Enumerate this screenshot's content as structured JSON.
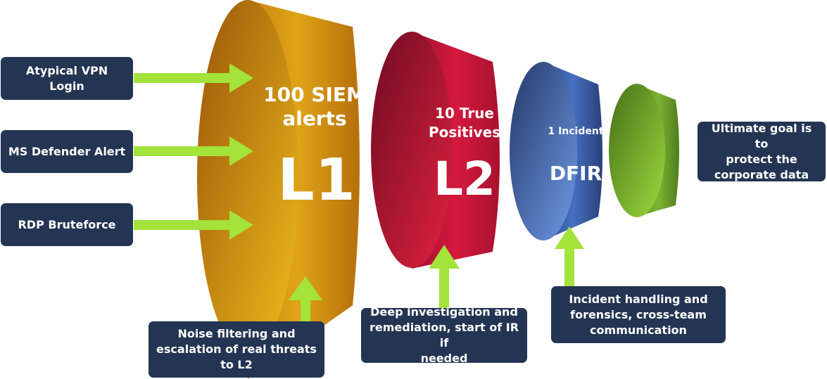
{
  "colors": {
    "box_bg": "#243553",
    "arrow": "#a3e33a",
    "l1": "#d79a12",
    "l2": "#c3183a",
    "dfir": "#3e62a8",
    "goal": "#6fa12d"
  },
  "inputs": [
    {
      "label": "Atypical VPN Login"
    },
    {
      "label": "MS Defender Alert"
    },
    {
      "label": "RDP Bruteforce"
    }
  ],
  "stages": [
    {
      "count_lines": [
        "100 SIEM",
        "alerts"
      ],
      "name": "L1"
    },
    {
      "count_lines": [
        "10 True",
        "Positives"
      ],
      "name": "L2"
    },
    {
      "count_lines": [
        "1 Incident"
      ],
      "name": "DFIR"
    }
  ],
  "descriptions": [
    {
      "lines": [
        "Noise filtering and",
        "escalation of real threats",
        "to L2"
      ]
    },
    {
      "lines": [
        "Deep investigation and",
        "remediation, start of IR if",
        "needed"
      ]
    },
    {
      "lines": [
        "Incident handling and",
        "forensics, cross-team",
        "communication"
      ]
    }
  ],
  "goal": {
    "lines": [
      "Ultimate goal is to",
      "protect the",
      "corporate data"
    ]
  }
}
